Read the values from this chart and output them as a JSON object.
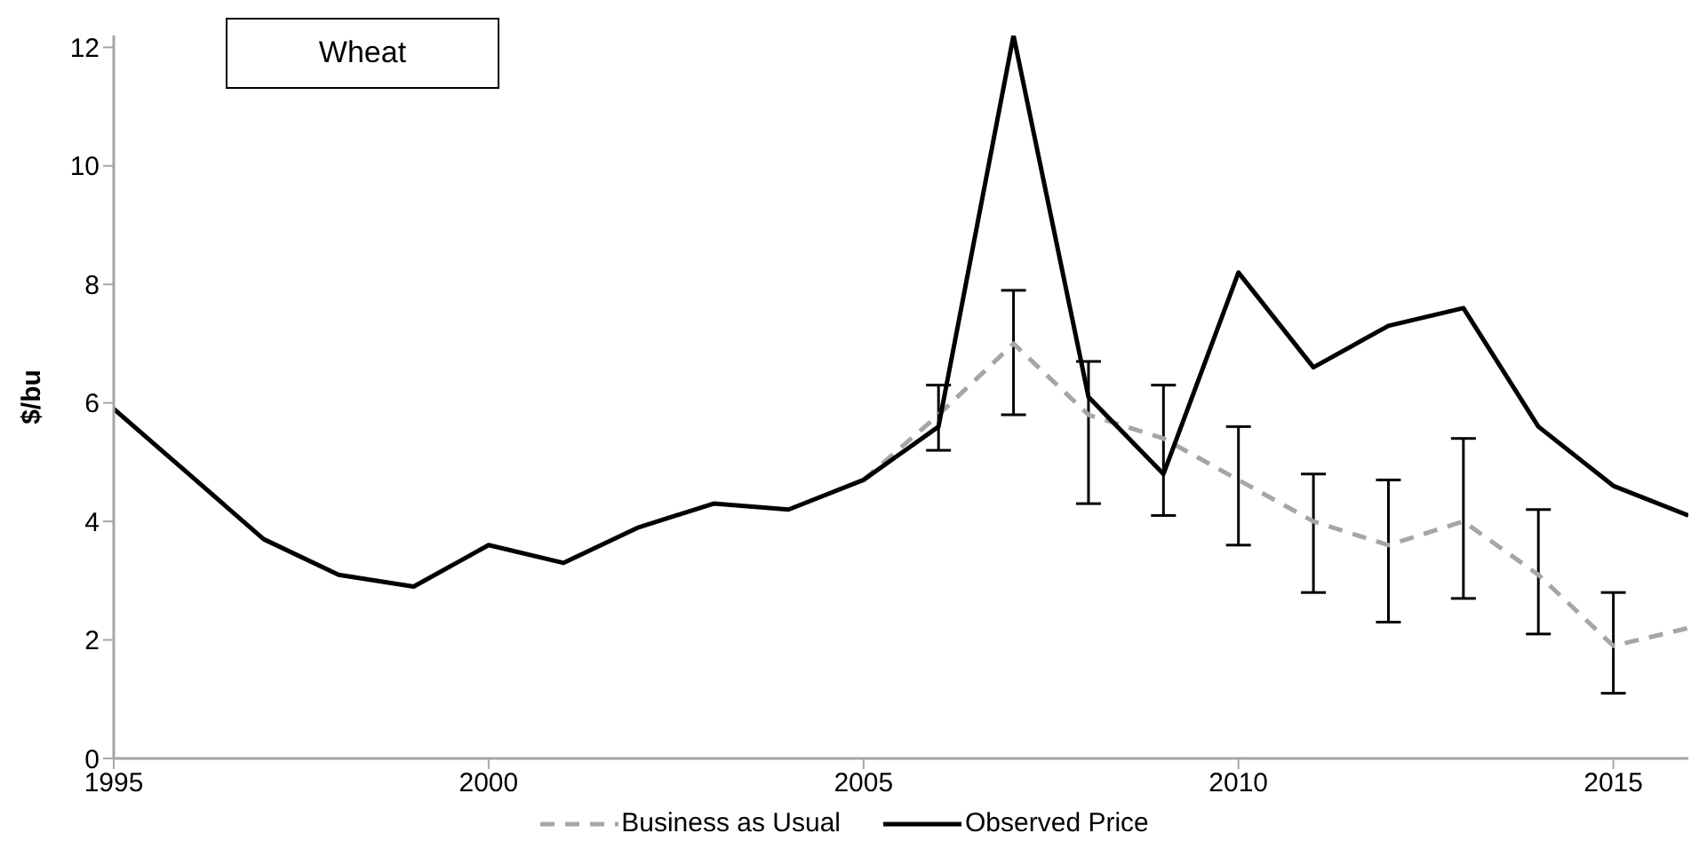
{
  "chart_data": {
    "type": "line",
    "title": "Wheat",
    "ylabel": "$/bu",
    "x": [
      1995,
      1996,
      1997,
      1998,
      1999,
      2000,
      2001,
      2002,
      2003,
      2004,
      2005,
      2006,
      2007,
      2008,
      2009,
      2010,
      2011,
      2012,
      2013,
      2014,
      2015,
      2016
    ],
    "xlim": [
      1995,
      2016
    ],
    "xticks": [
      1995,
      2000,
      2005,
      2010,
      2015
    ],
    "ylim": [
      0,
      12.2
    ],
    "yticks": [
      0,
      2,
      4,
      6,
      8,
      10,
      12
    ],
    "series": [
      {
        "name": "Business as Usual",
        "color": "#a6a6a6",
        "line_style": "dashed",
        "values": [
          null,
          null,
          null,
          null,
          null,
          null,
          null,
          null,
          null,
          null,
          4.7,
          5.8,
          7.0,
          5.8,
          5.4,
          4.7,
          4.0,
          3.6,
          4.0,
          3.1,
          1.9,
          2.2
        ],
        "errors": [
          null,
          null,
          null,
          null,
          null,
          null,
          null,
          null,
          null,
          null,
          null,
          [
            5.2,
            6.3
          ],
          [
            5.8,
            7.9
          ],
          [
            4.3,
            6.7
          ],
          [
            4.1,
            6.3
          ],
          [
            3.6,
            5.6
          ],
          [
            2.8,
            4.8
          ],
          [
            2.3,
            4.7
          ],
          [
            2.7,
            5.4
          ],
          [
            2.1,
            4.2
          ],
          [
            1.1,
            2.8
          ],
          null
        ]
      },
      {
        "name": "Observed Price",
        "color": "#000000",
        "line_style": "solid",
        "values": [
          5.9,
          4.8,
          3.7,
          3.1,
          2.9,
          3.6,
          3.3,
          3.9,
          4.3,
          4.2,
          4.7,
          5.6,
          12.2,
          6.1,
          4.8,
          8.2,
          6.6,
          7.3,
          7.6,
          5.6,
          4.6,
          4.1
        ]
      }
    ],
    "legend": "bottom",
    "grid": false,
    "marker": "none"
  }
}
